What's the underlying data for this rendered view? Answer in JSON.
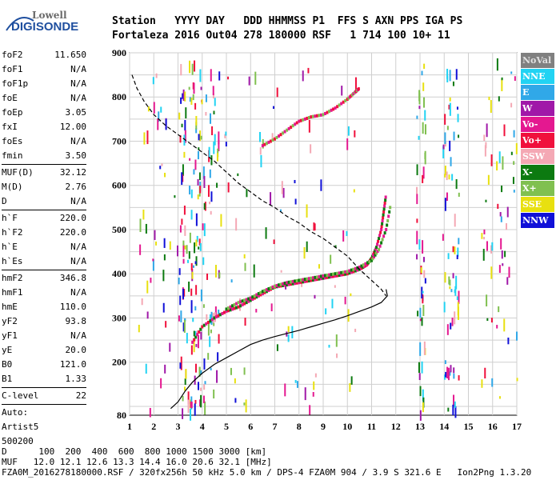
{
  "header": {
    "logo_top": "Lowell",
    "logo_bottom": "DIGISONDE",
    "row1": "Station   YYYY DAY   DDD HHMMSS P1  FFS S AXN PPS IGA PS",
    "row2": "Fortaleza 2016 Out04 278 180000 RSF   1 714 100 10+ 11"
  },
  "params": [
    [
      {
        "k": "foF2",
        "v": "11.650"
      },
      {
        "k": "foF1",
        "v": "N/A"
      },
      {
        "k": "foF1p",
        "v": "N/A"
      },
      {
        "k": "foE",
        "v": "N/A"
      },
      {
        "k": "foEp",
        "v": "3.05"
      },
      {
        "k": "fxI",
        "v": "12.00"
      },
      {
        "k": "foEs",
        "v": "N/A"
      },
      {
        "k": "fmin",
        "v": "3.50"
      }
    ],
    [
      {
        "k": "MUF(D)",
        "v": "32.12"
      },
      {
        "k": "M(D)",
        "v": "2.76"
      },
      {
        "k": "D",
        "v": "N/A"
      }
    ],
    [
      {
        "k": "h`F",
        "v": "220.0"
      },
      {
        "k": "h`F2",
        "v": "220.0"
      },
      {
        "k": "h`E",
        "v": "N/A"
      },
      {
        "k": "h`Es",
        "v": "N/A"
      }
    ],
    [
      {
        "k": "hmF2",
        "v": "346.8"
      },
      {
        "k": "hmF1",
        "v": "N/A"
      },
      {
        "k": "hmE",
        "v": "110.0"
      },
      {
        "k": "yF2",
        "v": "93.8"
      },
      {
        "k": "yF1",
        "v": "N/A"
      },
      {
        "k": "yE",
        "v": "20.0"
      },
      {
        "k": "B0",
        "v": "121.0"
      },
      {
        "k": "B1",
        "v": "1.33"
      }
    ],
    [
      {
        "k": "C-level",
        "v": "22"
      }
    ]
  ],
  "auto": [
    "Auto:",
    "Artist5",
    "500200"
  ],
  "legend": [
    {
      "label": "NoVal",
      "color": "#808080"
    },
    {
      "label": "NNE",
      "color": "#22d3f3"
    },
    {
      "label": "E",
      "color": "#30a8e8"
    },
    {
      "label": "W",
      "color": "#a018a8"
    },
    {
      "label": "Vo-",
      "color": "#e41890"
    },
    {
      "label": "Vo+",
      "color": "#f0103c"
    },
    {
      "label": "SSW",
      "color": "#f4a8b4"
    },
    {
      "label": "X-",
      "color": "#0c7a10"
    },
    {
      "label": "X+",
      "color": "#80c050"
    },
    {
      "label": "SSE",
      "color": "#e8e010"
    },
    {
      "label": "NNW",
      "color": "#1010d8"
    }
  ],
  "bottom": {
    "line1": "D      100  200  400  600  800 1000 1500 3000 [km]",
    "line2": "MUF   12.0 12.1 12.6 13.3 14.4 16.0 20.6 32.1 [MHz]",
    "line3": "FZA0M_2016278180000.RSF / 320fx256h 50 kHz 5.0 km / DPS-4 FZA0M 904 / 3.9 S 321.6 E   Ion2Png 1.3.20"
  },
  "chart_data": {
    "type": "scatter",
    "title": "",
    "xlabel": "",
    "ylabel": "",
    "xlim": [
      1,
      17
    ],
    "ylim": [
      80,
      900
    ],
    "x_ticks": [
      1,
      2,
      3,
      4,
      5,
      6,
      7,
      8,
      9,
      10,
      11,
      12,
      13,
      14,
      15,
      16,
      17
    ],
    "y_ticks": [
      80,
      200,
      300,
      400,
      500,
      600,
      700,
      800,
      900
    ],
    "grid": true,
    "series": [
      {
        "name": "O trace",
        "x": [
          3.6,
          4.0,
          4.5,
          5.0,
          5.5,
          6.0,
          6.5,
          7.0,
          7.5,
          8.0,
          8.5,
          9.0,
          9.5,
          10.0,
          10.5,
          10.8,
          11.0,
          11.2,
          11.4,
          11.5,
          11.6
        ],
        "y": [
          245,
          280,
          300,
          315,
          325,
          340,
          355,
          370,
          375,
          380,
          385,
          390,
          395,
          400,
          410,
          420,
          435,
          460,
          500,
          540,
          580
        ]
      },
      {
        "name": "X trace",
        "x": [
          5.0,
          5.5,
          6.0,
          6.5,
          7.0,
          7.5,
          8.0,
          8.5,
          9.0,
          9.5,
          10.0,
          10.5,
          11.0,
          11.3,
          11.6,
          11.8
        ],
        "y": [
          320,
          335,
          345,
          360,
          372,
          380,
          385,
          390,
          395,
          400,
          405,
          415,
          430,
          455,
          500,
          560
        ]
      },
      {
        "name": "Second hop",
        "x": [
          6.5,
          7.0,
          7.5,
          8.0,
          8.5,
          9.0,
          9.5,
          10.0,
          10.3,
          10.5
        ],
        "y": [
          690,
          705,
          725,
          745,
          755,
          760,
          775,
          795,
          810,
          820
        ]
      },
      {
        "name": "Profile (solid)",
        "x": [
          2.7,
          3.0,
          3.3,
          3.6,
          4.0,
          4.5,
          5.0,
          5.5,
          6.0,
          6.5,
          7.0,
          7.5,
          8.0,
          8.5,
          9.0,
          9.5,
          10.0,
          10.5,
          11.0,
          11.4,
          11.65,
          11.6
        ],
        "y": [
          95,
          110,
          135,
          155,
          175,
          195,
          210,
          225,
          240,
          250,
          258,
          265,
          272,
          280,
          288,
          296,
          305,
          315,
          325,
          335,
          350,
          365
        ]
      },
      {
        "name": "Profile (dashed)",
        "x": [
          1.1,
          1.3,
          1.6,
          2.0,
          2.5,
          3.0,
          3.5,
          4.0,
          4.5,
          5.0,
          5.5,
          6.0,
          6.5,
          7.0,
          7.5,
          8.0,
          8.5,
          9.0,
          9.5,
          10.0,
          10.5,
          11.0,
          11.4,
          11.6
        ],
        "y": [
          850,
          820,
          790,
          760,
          735,
          715,
          695,
          675,
          655,
          630,
          605,
          585,
          565,
          550,
          530,
          515,
          495,
          480,
          460,
          440,
          410,
          385,
          365,
          350
        ]
      }
    ]
  }
}
